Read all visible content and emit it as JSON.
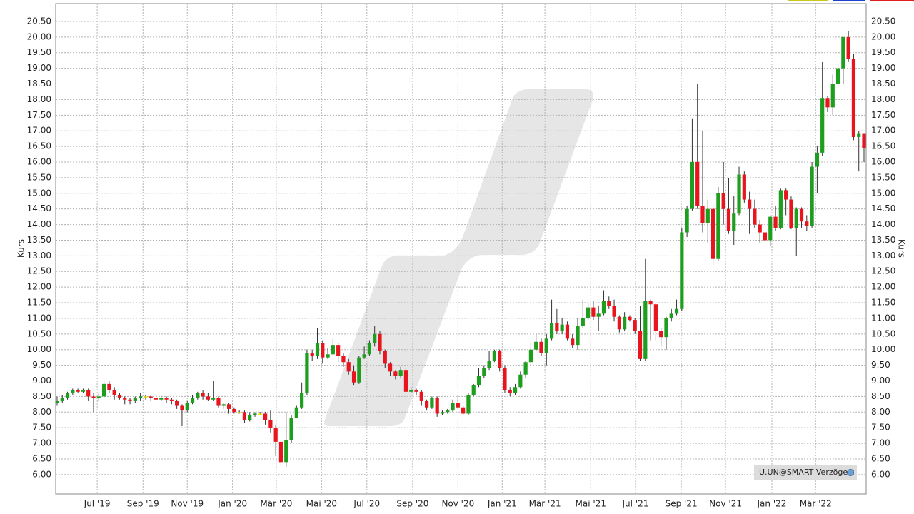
{
  "chart_data": {
    "type": "candlestick",
    "ylabel": "Kurs",
    "source": "U.UN@SMART Verzögert",
    "up_color": "#1e9e1e",
    "down_color": "#e8141e",
    "doji_color": "#e8e000",
    "grid": true,
    "xlim": [
      -0.27,
      155.41
    ],
    "ylim": [
      5.38,
      21.07
    ],
    "xticks": [
      {
        "value": 7.7,
        "label": "Jul '19"
      },
      {
        "value": 16.5,
        "label": "Sep '19"
      },
      {
        "value": 25.0,
        "label": "Nov '19"
      },
      {
        "value": 33.7,
        "label": "Jan '20"
      },
      {
        "value": 42.1,
        "label": "Mär '20"
      },
      {
        "value": 50.8,
        "label": "Mai '20"
      },
      {
        "value": 59.5,
        "label": "Jul '20"
      },
      {
        "value": 68.3,
        "label": "Sep '20"
      },
      {
        "value": 77.0,
        "label": "Nov '20"
      },
      {
        "value": 85.5,
        "label": "Jan '21"
      },
      {
        "value": 93.7,
        "label": "Mär '21"
      },
      {
        "value": 102.5,
        "label": "Mai '21"
      },
      {
        "value": 111.1,
        "label": "Jul '21"
      },
      {
        "value": 119.9,
        "label": "Sep '21"
      },
      {
        "value": 128.4,
        "label": "Nov '21"
      },
      {
        "value": 137.3,
        "label": "Jan '22"
      },
      {
        "value": 145.7,
        "label": "Mär '22"
      }
    ],
    "yticks": [
      {
        "value": 6,
        "label": "6.00"
      },
      {
        "value": 6.5,
        "label": "6.50"
      },
      {
        "value": 7,
        "label": "7.00"
      },
      {
        "value": 7.5,
        "label": "7.50"
      },
      {
        "value": 8,
        "label": "8.00"
      },
      {
        "value": 8.5,
        "label": "8.50"
      },
      {
        "value": 9,
        "label": "9.00"
      },
      {
        "value": 9.5,
        "label": "9.50"
      },
      {
        "value": 10,
        "label": "10.00"
      },
      {
        "value": 10.5,
        "label": "10.50"
      },
      {
        "value": 11,
        "label": "11.00"
      },
      {
        "value": 11.5,
        "label": "11.50"
      },
      {
        "value": 12,
        "label": "12.00"
      },
      {
        "value": 12.5,
        "label": "12.50"
      },
      {
        "value": 13,
        "label": "13.00"
      },
      {
        "value": 13.5,
        "label": "13.50"
      },
      {
        "value": 14,
        "label": "14.00"
      },
      {
        "value": 14.5,
        "label": "14.50"
      },
      {
        "value": 15,
        "label": "15.00"
      },
      {
        "value": 15.5,
        "label": "15.50"
      },
      {
        "value": 16,
        "label": "16.00"
      },
      {
        "value": 16.5,
        "label": "16.50"
      },
      {
        "value": 17,
        "label": "17.00"
      },
      {
        "value": 17.5,
        "label": "17.50"
      },
      {
        "value": 18,
        "label": "18.00"
      },
      {
        "value": 18.5,
        "label": "18.50"
      },
      {
        "value": 19,
        "label": "19.00"
      },
      {
        "value": 19.5,
        "label": "19.50"
      },
      {
        "value": 20,
        "label": "20.00"
      },
      {
        "value": 20.5,
        "label": "20.50"
      }
    ],
    "x": [
      0,
      1,
      2,
      3,
      4,
      5,
      6,
      7,
      8,
      9,
      10,
      11,
      12,
      13,
      14,
      15,
      16,
      17,
      18,
      19,
      20,
      21,
      22,
      23,
      24,
      25,
      26,
      27,
      28,
      29,
      30,
      31,
      32,
      33,
      34,
      35,
      36,
      37,
      38,
      39,
      40,
      41,
      42,
      43,
      44,
      45,
      46,
      47,
      48,
      49,
      50,
      51,
      52,
      53,
      54,
      55,
      56,
      57,
      58,
      59,
      60,
      61,
      62,
      63,
      64,
      65,
      66,
      67,
      68,
      69,
      70,
      71,
      72,
      73,
      74,
      75,
      76,
      77,
      78,
      79,
      80,
      81,
      82,
      83,
      84,
      85,
      86,
      87,
      88,
      89,
      90,
      91,
      92,
      93,
      94,
      95,
      96,
      97,
      98,
      99,
      100,
      101,
      102,
      103,
      104,
      105,
      106,
      107,
      108,
      109,
      110,
      111,
      112,
      113,
      114,
      115,
      116,
      117,
      118,
      119,
      120,
      121,
      122,
      123,
      124,
      125,
      126,
      127,
      128,
      129,
      130,
      131,
      132,
      133,
      134,
      135,
      136,
      137,
      138,
      139,
      140,
      141,
      142,
      143,
      144,
      145,
      146,
      147,
      148,
      149,
      150,
      151,
      152,
      153,
      154,
      155
    ],
    "open": [
      8.3,
      8.35,
      8.45,
      8.6,
      8.7,
      8.65,
      8.7,
      8.5,
      8.45,
      8.5,
      8.9,
      8.7,
      8.55,
      8.45,
      8.4,
      8.35,
      8.45,
      8.5,
      8.5,
      8.45,
      8.4,
      8.45,
      8.4,
      8.35,
      8.2,
      8.05,
      8.3,
      8.45,
      8.6,
      8.5,
      8.4,
      8.45,
      8.2,
      8.25,
      8.1,
      8.0,
      8.0,
      7.75,
      7.9,
      7.95,
      7.95,
      7.75,
      7.5,
      7.05,
      6.4,
      7.1,
      7.8,
      8.15,
      8.6,
      9.9,
      9.8,
      10.2,
      9.75,
      9.85,
      10.15,
      9.8,
      9.6,
      9.3,
      8.95,
      9.75,
      9.85,
      10.2,
      10.5,
      9.95,
      9.55,
      9.3,
      9.15,
      9.35,
      8.65,
      8.7,
      8.65,
      8.35,
      8.15,
      8.45,
      7.95,
      8.0,
      8.05,
      8.3,
      8.15,
      7.95,
      8.55,
      8.85,
      9.15,
      9.4,
      9.65,
      9.95,
      9.4,
      8.7,
      8.6,
      8.8,
      9.2,
      9.6,
      10.0,
      10.25,
      9.9,
      10.35,
      10.85,
      10.6,
      10.8,
      10.35,
      10.15,
      10.75,
      11.0,
      11.35,
      11.05,
      11.15,
      11.55,
      11.4,
      11.05,
      10.65,
      11.05,
      10.95,
      10.6,
      9.7,
      11.55,
      11.45,
      10.6,
      10.4,
      11.0,
      11.15,
      11.3,
      13.75,
      14.5,
      16.0,
      14.6,
      14.05,
      14.5,
      12.9,
      15.0,
      14.5,
      13.8,
      14.35,
      15.6,
      14.8,
      14.5,
      14.0,
      13.75,
      13.5,
      14.25,
      13.9,
      15.1,
      14.8,
      13.9,
      14.5,
      14.1,
      13.95,
      15.85,
      16.3,
      18.05,
      17.75,
      18.5,
      19.0,
      20.0,
      19.3,
      16.8,
      16.9
    ],
    "high": [
      8.5,
      8.55,
      8.65,
      8.75,
      8.75,
      8.75,
      8.75,
      8.6,
      8.6,
      9.0,
      9.0,
      8.8,
      8.6,
      8.5,
      8.45,
      8.5,
      8.6,
      8.55,
      8.55,
      8.5,
      8.5,
      8.5,
      8.45,
      8.4,
      8.25,
      8.35,
      8.55,
      8.65,
      8.7,
      8.6,
      9.0,
      8.5,
      8.3,
      8.3,
      8.15,
      8.05,
      8.05,
      8.0,
      8.0,
      8.0,
      8.0,
      8.05,
      7.6,
      7.1,
      8.0,
      7.9,
      8.2,
      8.95,
      10.0,
      10.0,
      10.7,
      10.3,
      10.05,
      10.35,
      10.2,
      9.9,
      9.7,
      9.5,
      9.8,
      10.1,
      10.3,
      10.75,
      10.6,
      10.0,
      9.6,
      9.35,
      9.45,
      9.4,
      8.8,
      8.75,
      8.7,
      8.4,
      8.5,
      8.5,
      8.05,
      8.1,
      8.4,
      8.55,
      8.2,
      8.6,
      8.9,
      9.4,
      9.5,
      9.95,
      10.0,
      10.0,
      9.5,
      8.8,
      8.9,
      9.3,
      9.65,
      10.2,
      10.5,
      10.35,
      10.5,
      11.6,
      11.3,
      11.0,
      10.9,
      10.5,
      11.0,
      11.6,
      11.5,
      11.55,
      11.4,
      11.9,
      11.7,
      11.6,
      11.1,
      11.2,
      11.1,
      11.0,
      11.4,
      12.9,
      11.6,
      11.5,
      10.7,
      11.05,
      11.3,
      11.6,
      13.9,
      14.6,
      17.4,
      18.5,
      17.0,
      14.8,
      14.65,
      15.2,
      16.0,
      15.5,
      14.9,
      15.85,
      15.7,
      15.05,
      14.8,
      14.15,
      13.9,
      14.3,
      14.6,
      15.15,
      15.15,
      14.9,
      14.55,
      14.55,
      14.3,
      16.0,
      16.5,
      19.2,
      18.1,
      18.8,
      19.15,
      20.0,
      20.2,
      19.45,
      17.0,
      16.9
    ],
    "low": [
      8.2,
      8.3,
      8.4,
      8.55,
      8.6,
      8.6,
      8.35,
      8.0,
      8.35,
      8.45,
      8.6,
      8.4,
      8.4,
      8.25,
      8.25,
      8.3,
      8.35,
      8.4,
      8.35,
      8.35,
      8.35,
      8.3,
      8.25,
      8.1,
      7.55,
      8.0,
      8.25,
      8.4,
      8.4,
      8.35,
      8.35,
      8.15,
      8.1,
      7.95,
      7.95,
      7.95,
      7.65,
      7.7,
      7.85,
      7.9,
      7.6,
      7.35,
      6.6,
      6.25,
      6.25,
      7.0,
      7.8,
      8.1,
      8.55,
      9.65,
      9.7,
      9.55,
      9.7,
      9.8,
      9.6,
      9.45,
      9.2,
      8.85,
      8.9,
      9.7,
      9.8,
      10.1,
      9.85,
      9.4,
      9.15,
      9.05,
      9.1,
      8.6,
      8.6,
      8.55,
      8.2,
      8.05,
      8.1,
      7.85,
      7.9,
      7.95,
      8.0,
      8.1,
      7.9,
      7.9,
      8.5,
      8.8,
      9.1,
      9.35,
      9.6,
      9.3,
      8.6,
      8.5,
      8.55,
      8.75,
      9.1,
      9.5,
      9.95,
      9.8,
      9.5,
      10.3,
      10.5,
      10.5,
      10.3,
      10.05,
      10.0,
      10.7,
      10.95,
      10.95,
      10.6,
      11.1,
      11.3,
      10.9,
      10.55,
      10.6,
      10.9,
      10.5,
      9.65,
      9.65,
      10.3,
      10.3,
      10.1,
      10.0,
      10.9,
      11.1,
      11.25,
      13.6,
      14.45,
      14.5,
      13.75,
      13.4,
      12.7,
      12.85,
      14.0,
      13.7,
      13.35,
      14.3,
      14.7,
      13.7,
      13.9,
      13.4,
      12.6,
      13.3,
      13.8,
      13.85,
      14.3,
      13.85,
      13.0,
      13.9,
      13.8,
      13.9,
      15.0,
      16.2,
      17.6,
      17.5,
      18.4,
      18.5,
      19.2,
      16.7,
      15.7,
      16.0
    ],
    "close": [
      8.35,
      8.45,
      8.6,
      8.7,
      8.65,
      8.7,
      8.5,
      8.45,
      8.5,
      8.9,
      8.7,
      8.55,
      8.45,
      8.4,
      8.35,
      8.45,
      8.5,
      8.5,
      8.45,
      8.4,
      8.45,
      8.4,
      8.35,
      8.2,
      8.05,
      8.3,
      8.45,
      8.6,
      8.5,
      8.4,
      8.45,
      8.2,
      8.25,
      8.1,
      8.0,
      8.0,
      7.75,
      7.9,
      7.95,
      7.95,
      7.75,
      7.5,
      7.05,
      6.4,
      7.1,
      7.8,
      8.15,
      8.6,
      9.9,
      9.8,
      10.2,
      9.75,
      9.85,
      10.15,
      9.8,
      9.6,
      9.3,
      8.95,
      9.75,
      9.85,
      10.2,
      10.5,
      9.95,
      9.55,
      9.3,
      9.15,
      9.35,
      8.65,
      8.7,
      8.65,
      8.35,
      8.15,
      8.45,
      7.95,
      8.0,
      8.05,
      8.3,
      8.15,
      7.95,
      8.55,
      8.85,
      9.15,
      9.4,
      9.65,
      9.95,
      9.4,
      8.7,
      8.6,
      8.8,
      9.2,
      9.6,
      10.0,
      10.25,
      9.9,
      10.35,
      10.85,
      10.6,
      10.8,
      10.35,
      10.15,
      10.75,
      11.0,
      11.35,
      11.05,
      11.15,
      11.55,
      11.4,
      11.05,
      10.65,
      11.05,
      10.95,
      10.6,
      9.7,
      11.55,
      11.45,
      10.6,
      10.4,
      11.0,
      11.15,
      11.3,
      13.75,
      14.5,
      16.0,
      14.6,
      14.05,
      14.5,
      12.9,
      15.0,
      14.5,
      13.8,
      14.35,
      15.6,
      14.8,
      14.5,
      14.0,
      13.75,
      13.5,
      14.25,
      13.9,
      15.1,
      14.8,
      13.9,
      14.5,
      14.1,
      13.95,
      15.85,
      16.3,
      18.05,
      17.75,
      18.5,
      19.0,
      20.0,
      19.3,
      16.8,
      16.9,
      16.45
    ]
  }
}
